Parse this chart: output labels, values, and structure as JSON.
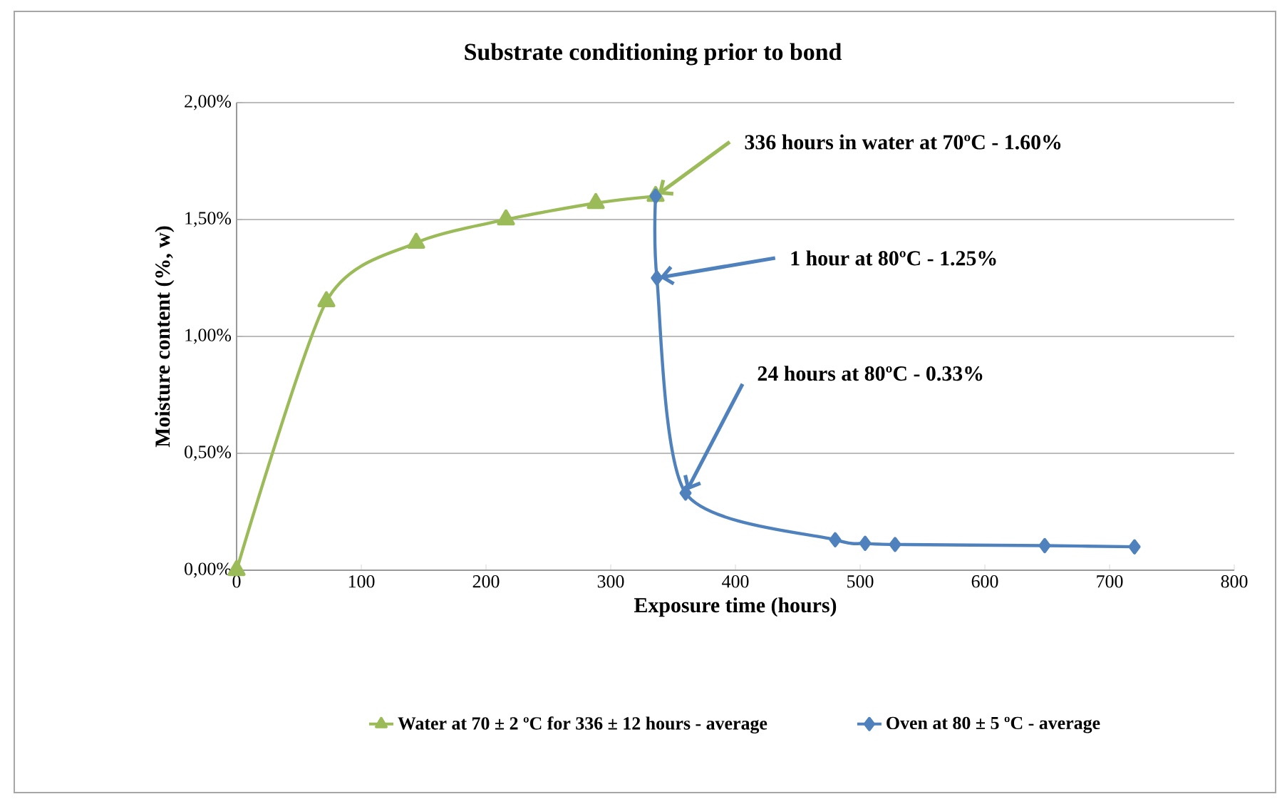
{
  "chart_data": {
    "type": "line",
    "title": "Substrate conditioning prior to bond",
    "xlabel": "Exposure time  (hours)",
    "ylabel": "Moisture content (%, w)",
    "xlim": [
      0,
      800
    ],
    "xticks": [
      0,
      100,
      200,
      300,
      400,
      500,
      600,
      700,
      800
    ],
    "ylim": [
      0,
      2
    ],
    "yticks": [
      {
        "value": 0,
        "label": "0,00%"
      },
      {
        "value": 0.5,
        "label": "0,50%"
      },
      {
        "value": 1,
        "label": "1,00%"
      },
      {
        "value": 1.5,
        "label": "1,50%"
      },
      {
        "value": 2,
        "label": "2,00%"
      }
    ],
    "grid": "y",
    "legend": "bottom",
    "series": [
      {
        "name": "Water at 70 ± 2 ºC for 336 ± 12 hours - average",
        "color": "#9bbb59",
        "marker": "triangle",
        "x": [
          0,
          72,
          144,
          216,
          288,
          336
        ],
        "values": [
          0,
          1.15,
          1.4,
          1.5,
          1.57,
          1.6
        ]
      },
      {
        "name": "Oven at 80 ± 5 ºC - average",
        "color": "#4f81bd",
        "marker": "diamond",
        "x": [
          336,
          337,
          360,
          480,
          504,
          528,
          648,
          720
        ],
        "values": [
          1.6,
          1.25,
          0.33,
          0.13,
          0.115,
          0.11,
          0.105,
          0.1
        ]
      }
    ],
    "annotations": [
      {
        "text": "336 hours in water at 70ºC - 1.60%",
        "x": 336,
        "y": 1.6
      },
      {
        "text": "1 hour at 80ºC - 1.25%",
        "x": 337,
        "y": 1.25
      },
      {
        "text": "24 hours at 80ºC - 0.33%",
        "x": 360,
        "y": 0.33
      }
    ]
  }
}
